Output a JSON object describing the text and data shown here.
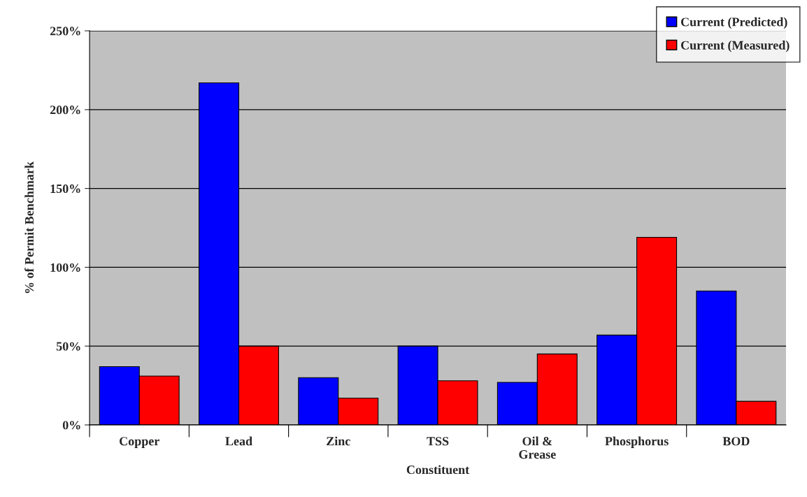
{
  "chart_data": {
    "type": "bar",
    "xlabel": "Constituent",
    "ylabel": "% of Permit Benchmark",
    "categories": [
      "Copper",
      "Lead",
      "Zinc",
      "TSS",
      "Oil &\nGrease",
      "Phosphorus",
      "BOD"
    ],
    "series": [
      {
        "name": "Current (Predicted)",
        "color": "#0000ff",
        "values": [
          37,
          217,
          30,
          50,
          27,
          57,
          85
        ]
      },
      {
        "name": "Current (Measured)",
        "color": "#ff0000",
        "values": [
          31,
          50,
          17,
          28,
          45,
          119,
          15
        ]
      }
    ],
    "ylim": [
      0,
      250
    ],
    "yticks": [
      {
        "value": 0,
        "label": "0%"
      },
      {
        "value": 50,
        "label": "50%"
      },
      {
        "value": 100,
        "label": "100%"
      },
      {
        "value": 150,
        "label": "150%"
      },
      {
        "value": 200,
        "label": "200%"
      },
      {
        "value": 250,
        "label": "250%"
      }
    ],
    "grid": "y",
    "legend": "top right"
  }
}
